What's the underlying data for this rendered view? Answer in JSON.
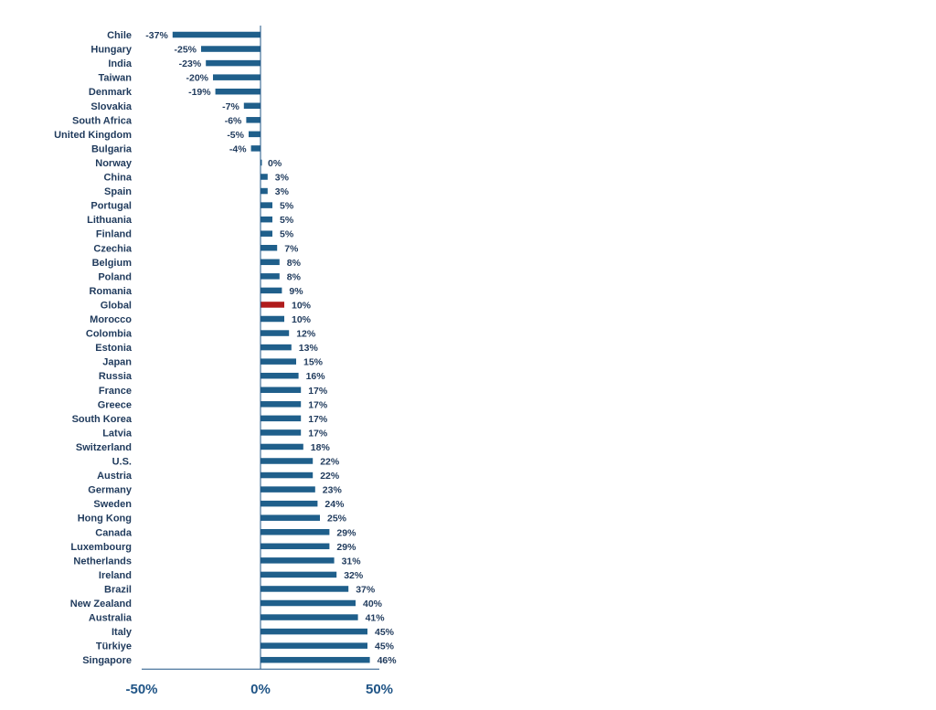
{
  "chart_data": {
    "type": "bar",
    "orientation": "horizontal",
    "categories": [
      "Chile",
      "Hungary",
      "India",
      "Taiwan",
      "Denmark",
      "Slovakia",
      "South Africa",
      "United Kingdom",
      "Bulgaria",
      "Norway",
      "China",
      "Spain",
      "Portugal",
      "Lithuania",
      "Finland",
      "Czechia",
      "Belgium",
      "Poland",
      "Romania",
      "Global",
      "Morocco",
      "Colombia",
      "Estonia",
      "Japan",
      "Russia",
      "France",
      "Greece",
      "South Korea",
      "Latvia",
      "Switzerland",
      "U.S.",
      "Austria",
      "Germany",
      "Sweden",
      "Hong Kong",
      "Canada",
      "Luxembourg",
      "Netherlands",
      "Ireland",
      "Brazil",
      "New Zealand",
      "Australia",
      "Italy",
      "Türkiye",
      "Singapore"
    ],
    "values": [
      -37,
      -25,
      -23,
      -20,
      -19,
      -7,
      -6,
      -5,
      -4,
      0,
      3,
      3,
      5,
      5,
      5,
      7,
      8,
      8,
      9,
      10,
      10,
      12,
      13,
      15,
      16,
      17,
      17,
      17,
      17,
      18,
      22,
      22,
      23,
      24,
      25,
      29,
      29,
      31,
      32,
      37,
      40,
      41,
      45,
      45,
      46
    ],
    "value_labels": [
      "-37%",
      "-25%",
      "-23%",
      "-20%",
      "-19%",
      "-7%",
      "-6%",
      "-5%",
      "-4%",
      "0%",
      "3%",
      "3%",
      "5%",
      "5%",
      "5%",
      "7%",
      "8%",
      "8%",
      "9%",
      "10%",
      "10%",
      "12%",
      "13%",
      "15%",
      "16%",
      "17%",
      "17%",
      "17%",
      "17%",
      "18%",
      "22%",
      "22%",
      "23%",
      "24%",
      "25%",
      "29%",
      "29%",
      "31%",
      "32%",
      "37%",
      "40%",
      "41%",
      "45%",
      "45%",
      "46%"
    ],
    "highlight": "Global",
    "xlim": [
      -50,
      50
    ],
    "x_ticks": [
      -50,
      0,
      50
    ],
    "x_tick_labels": [
      "-50%",
      "0%",
      "50%"
    ],
    "grid": false,
    "colors": {
      "bar": "#1f5f8b",
      "highlight": "#b01c1c",
      "axis": "#1f5486",
      "label": "#1f3a5c"
    }
  }
}
